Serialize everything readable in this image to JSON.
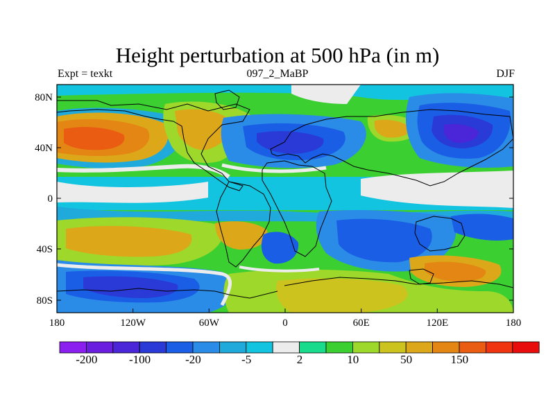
{
  "title": "Height perturbation at 500 hPa (in m)",
  "subtitle_left": "Expt = texkt",
  "subtitle_center": "097_2_MaBP",
  "subtitle_right": "DJF",
  "x_ticks": [
    "180",
    "120W",
    "60W",
    "0",
    "60E",
    "120E",
    "180"
  ],
  "y_ticks": [
    "80N",
    "40N",
    "0",
    "40S",
    "80S"
  ],
  "colorbar": {
    "colors": [
      "#8a1ff0",
      "#6a1ee0",
      "#4a26d8",
      "#2a3ad6",
      "#1a5ee6",
      "#2a8ce6",
      "#20aadc",
      "#12c4e0",
      "#ececec",
      "#18dc8c",
      "#3ccf32",
      "#9ed82a",
      "#ccc31e",
      "#dca81a",
      "#e48614",
      "#ea5c12",
      "#f03410",
      "#e80c0c"
    ],
    "labels": [
      "-200",
      "-100",
      "-20",
      "-5",
      "2",
      "10",
      "50",
      "150"
    ]
  },
  "chart_data": {
    "type": "heatmap",
    "title": "Height perturbation at 500 hPa (in m)",
    "subtitle": "097_2_MaBP",
    "variable": "500 hPa height perturbation",
    "units": "m",
    "season": "DJF",
    "experiment": "texkt",
    "x_range": [
      -180,
      180
    ],
    "y_range": [
      -90,
      90
    ],
    "x_ticks": [
      "180",
      "120W",
      "60W",
      "0",
      "60E",
      "120E",
      "180"
    ],
    "y_ticks": [
      "80N",
      "40N",
      "0",
      "40S",
      "80S"
    ],
    "colorbar_levels": [
      "-200",
      "-100",
      "-20",
      "-5",
      "2",
      "10",
      "50",
      "150"
    ],
    "features": [
      {
        "lon": -150,
        "lat": 42,
        "value": 100,
        "desc": "positive anomaly over North Pacific"
      },
      {
        "lon": -80,
        "lat": 48,
        "value": 40,
        "desc": "positive anomaly over North America"
      },
      {
        "lon": 0,
        "lat": 45,
        "value": -40,
        "desc": "negative anomaly over North Atlantic / Europe"
      },
      {
        "lon": 120,
        "lat": 45,
        "value": -80,
        "desc": "negative anomaly over East Asia"
      },
      {
        "lon": 80,
        "lat": 55,
        "value": 20,
        "desc": "positive anomaly over central Asia"
      },
      {
        "lon": -120,
        "lat": -65,
        "value": -60,
        "desc": "negative anomaly over South Pacific"
      },
      {
        "lon": 60,
        "lat": -35,
        "value": -40,
        "desc": "negative anomaly over Indian Ocean"
      },
      {
        "lon": 120,
        "lat": -60,
        "value": 80,
        "desc": "positive anomaly south of Australia"
      },
      {
        "lon": 30,
        "lat": -70,
        "value": 40,
        "desc": "positive anomaly over Antarctica"
      }
    ]
  }
}
